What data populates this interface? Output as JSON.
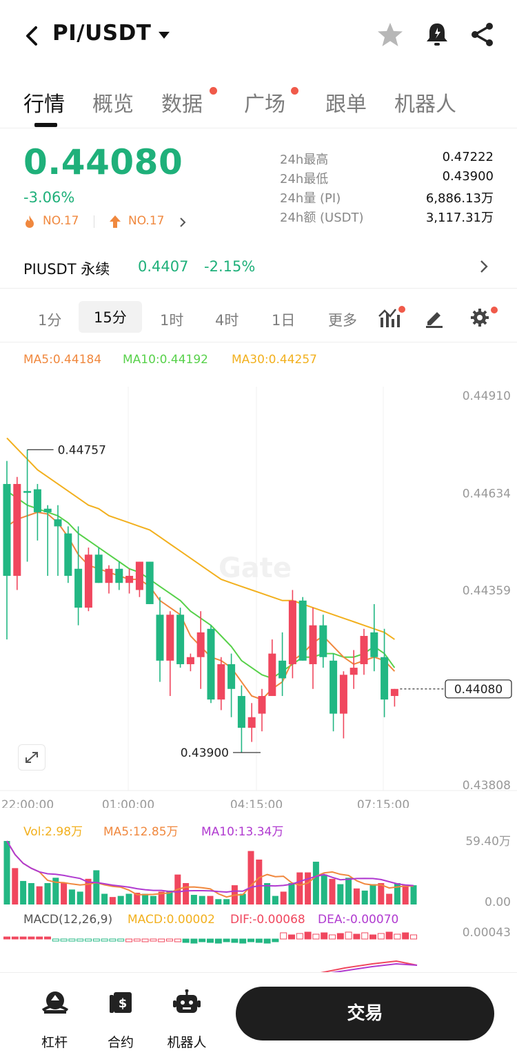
{
  "header": {
    "pair": "PI/USDT"
  },
  "tabs": [
    {
      "label": "行情",
      "active": true,
      "dot": false
    },
    {
      "label": "概览",
      "active": false,
      "dot": false
    },
    {
      "label": "数据",
      "active": false,
      "dot": true
    },
    {
      "label": "广场",
      "active": false,
      "dot": true
    },
    {
      "label": "跟单",
      "active": false,
      "dot": false
    },
    {
      "label": "机器人",
      "active": false,
      "dot": false
    }
  ],
  "ticker": {
    "price": "0.44080",
    "change": "-3.06%",
    "rank1": "NO.17",
    "rank2": "NO.17",
    "stats": [
      {
        "label": "24h最高",
        "value": "0.47222"
      },
      {
        "label": "24h最低",
        "value": "0.43900"
      },
      {
        "label": "24h量 (PI)",
        "value": "6,886.13万"
      },
      {
        "label": "24h额 (USDT)",
        "value": "3,117.31万"
      }
    ]
  },
  "perp": {
    "name": "PIUSDT 永续",
    "price": "0.4407",
    "change": "-2.15%"
  },
  "intervals": [
    {
      "label": "1分",
      "selected": false
    },
    {
      "label": "15分",
      "selected": true
    },
    {
      "label": "1时",
      "selected": false
    },
    {
      "label": "4时",
      "selected": false
    },
    {
      "label": "1日",
      "selected": false
    },
    {
      "label": "更多",
      "selected": false
    }
  ],
  "ma_legend": {
    "ma5": "MA5:0.44184",
    "ma10": "MA10:0.44192",
    "ma30": "MA30:0.44257"
  },
  "colors": {
    "up": "#f0475e",
    "down": "#22b783",
    "ma5": "#f0883e",
    "ma10": "#57d14a",
    "ma30": "#f2b01e",
    "ma10vol": "#b03ad0"
  },
  "chart_data": {
    "type": "candlestick",
    "y_axis_labels": [
      "0.44910",
      "0.44634",
      "0.44359",
      "0.43808"
    ],
    "ylim": [
      0.43808,
      0.4491
    ],
    "x_axis_labels": [
      "22:00:00",
      "01:00:00",
      "04:15:00",
      "07:15:00"
    ],
    "high_marker": "0.44757",
    "low_marker": "0.43900",
    "last_price_tag": "0.44080",
    "candles": [
      {
        "o": 0.4466,
        "h": 0.44725,
        "l": 0.4422,
        "c": 0.444
      },
      {
        "o": 0.444,
        "h": 0.4468,
        "l": 0.4436,
        "c": 0.4466
      },
      {
        "o": 0.4464,
        "h": 0.44757,
        "l": 0.4444,
        "c": 0.44635
      },
      {
        "o": 0.44645,
        "h": 0.4466,
        "l": 0.445,
        "c": 0.4458
      },
      {
        "o": 0.4459,
        "h": 0.446,
        "l": 0.444,
        "c": 0.4458
      },
      {
        "o": 0.4456,
        "h": 0.446,
        "l": 0.444,
        "c": 0.4454
      },
      {
        "o": 0.4452,
        "h": 0.4454,
        "l": 0.4438,
        "c": 0.444
      },
      {
        "o": 0.4442,
        "h": 0.4454,
        "l": 0.4426,
        "c": 0.4431
      },
      {
        "o": 0.4431,
        "h": 0.4448,
        "l": 0.443,
        "c": 0.4446
      },
      {
        "o": 0.4446,
        "h": 0.4448,
        "l": 0.4438,
        "c": 0.4438
      },
      {
        "o": 0.4438,
        "h": 0.4443,
        "l": 0.4435,
        "c": 0.4442
      },
      {
        "o": 0.4442,
        "h": 0.4444,
        "l": 0.4436,
        "c": 0.4438
      },
      {
        "o": 0.4438,
        "h": 0.4442,
        "l": 0.4435,
        "c": 0.444
      },
      {
        "o": 0.4436,
        "h": 0.4444,
        "l": 0.4434,
        "c": 0.4444
      },
      {
        "o": 0.4444,
        "h": 0.4444,
        "l": 0.4432,
        "c": 0.4432
      },
      {
        "o": 0.4429,
        "h": 0.4434,
        "l": 0.441,
        "c": 0.4416
      },
      {
        "o": 0.4416,
        "h": 0.443,
        "l": 0.4406,
        "c": 0.4429
      },
      {
        "o": 0.4429,
        "h": 0.4431,
        "l": 0.4414,
        "c": 0.4415
      },
      {
        "o": 0.4415,
        "h": 0.4418,
        "l": 0.4413,
        "c": 0.4417
      },
      {
        "o": 0.4417,
        "h": 0.443,
        "l": 0.4408,
        "c": 0.4424
      },
      {
        "o": 0.4425,
        "h": 0.4426,
        "l": 0.4404,
        "c": 0.4405
      },
      {
        "o": 0.4405,
        "h": 0.4417,
        "l": 0.4402,
        "c": 0.4415
      },
      {
        "o": 0.4415,
        "h": 0.4418,
        "l": 0.44,
        "c": 0.4408
      },
      {
        "o": 0.4406,
        "h": 0.4409,
        "l": 0.439,
        "c": 0.4397
      },
      {
        "o": 0.4397,
        "h": 0.4404,
        "l": 0.4393,
        "c": 0.44
      },
      {
        "o": 0.4401,
        "h": 0.4408,
        "l": 0.4396,
        "c": 0.4406
      },
      {
        "o": 0.4406,
        "h": 0.4422,
        "l": 0.4406,
        "c": 0.4418
      },
      {
        "o": 0.4416,
        "h": 0.4424,
        "l": 0.4406,
        "c": 0.4411
      },
      {
        "o": 0.4415,
        "h": 0.4436,
        "l": 0.4411,
        "c": 0.4433
      },
      {
        "o": 0.4433,
        "h": 0.4434,
        "l": 0.4416,
        "c": 0.4416
      },
      {
        "o": 0.4415,
        "h": 0.4431,
        "l": 0.4408,
        "c": 0.4426
      },
      {
        "o": 0.4426,
        "h": 0.4429,
        "l": 0.4414,
        "c": 0.4417
      },
      {
        "o": 0.4416,
        "h": 0.4418,
        "l": 0.4396,
        "c": 0.4401
      },
      {
        "o": 0.4401,
        "h": 0.4413,
        "l": 0.4394,
        "c": 0.4412
      },
      {
        "o": 0.4412,
        "h": 0.4419,
        "l": 0.4408,
        "c": 0.4414
      },
      {
        "o": 0.4415,
        "h": 0.4425,
        "l": 0.4412,
        "c": 0.4423
      },
      {
        "o": 0.4424,
        "h": 0.4432,
        "l": 0.4413,
        "c": 0.4417
      },
      {
        "o": 0.4417,
        "h": 0.4425,
        "l": 0.44,
        "c": 0.4405
      },
      {
        "o": 0.4406,
        "h": 0.4408,
        "l": 0.4403,
        "c": 0.4408
      }
    ],
    "ma5": [
      0.4454,
      0.4456,
      0.4457,
      0.4458,
      0.44575,
      0.4455,
      0.4451,
      0.4446,
      0.4443,
      0.4442,
      0.4441,
      0.444,
      0.4439,
      0.4439,
      0.4437,
      0.4433,
      0.4431,
      0.4429,
      0.4423,
      0.442,
      0.4417,
      0.4416,
      0.4414,
      0.441,
      0.4406,
      0.4405,
      0.4408,
      0.441,
      0.4416,
      0.4418,
      0.4421,
      0.4423,
      0.442,
      0.4417,
      0.4415,
      0.4416,
      0.4417,
      0.4416,
      0.4413
    ],
    "ma10": [
      0.4464,
      0.4462,
      0.446,
      0.4459,
      0.4458,
      0.4457,
      0.4455,
      0.4452,
      0.445,
      0.4448,
      0.4446,
      0.4444,
      0.4442,
      0.4441,
      0.4439,
      0.4437,
      0.4435,
      0.4433,
      0.443,
      0.4428,
      0.4426,
      0.4423,
      0.442,
      0.4416,
      0.4414,
      0.4412,
      0.4411,
      0.4413,
      0.4415,
      0.4417,
      0.4417,
      0.4418,
      0.4418,
      0.4417,
      0.4417,
      0.4418,
      0.442,
      0.4418,
      0.4414
    ],
    "ma30": [
      0.4479,
      0.4476,
      0.4473,
      0.447,
      0.4468,
      0.4466,
      0.4464,
      0.4462,
      0.446,
      0.4459,
      0.4457,
      0.4456,
      0.4455,
      0.4454,
      0.4453,
      0.4451,
      0.4449,
      0.4447,
      0.4445,
      0.4443,
      0.4441,
      0.4439,
      0.4438,
      0.4437,
      0.4436,
      0.4435,
      0.4434,
      0.4433,
      0.4433,
      0.4432,
      0.4431,
      0.443,
      0.4429,
      0.4428,
      0.4427,
      0.4426,
      0.4425,
      0.4424,
      0.4422
    ],
    "volume": {
      "legend": {
        "vol": "Vol:2.98万",
        "ma5": "MA5:12.85万",
        "ma10": "MA10:13.34万"
      },
      "axis_labels": [
        "59.40万",
        "0.00"
      ],
      "values": [
        59.4,
        34,
        22,
        20,
        17,
        20,
        25,
        20,
        14,
        12,
        24,
        32,
        10,
        7,
        8,
        10,
        11,
        10,
        8,
        12,
        13,
        28,
        20,
        9,
        8,
        8,
        5,
        5,
        18,
        10,
        50,
        42,
        20,
        8,
        12,
        20,
        30,
        30,
        40,
        28,
        24,
        19,
        25,
        15,
        13,
        19,
        20,
        10,
        20,
        18,
        18
      ]
    },
    "macd": {
      "legend": {
        "title": "MACD(12,26,9)",
        "macd": "MACD:0.00002",
        "dif": "DIF:-0.00068",
        "dea": "DEA:-0.00070"
      },
      "axis_label": "0.00043"
    }
  },
  "bottom_bar": {
    "items": [
      {
        "label": "杠杆"
      },
      {
        "label": "合约"
      },
      {
        "label": "机器人"
      }
    ],
    "trade": "交易"
  }
}
